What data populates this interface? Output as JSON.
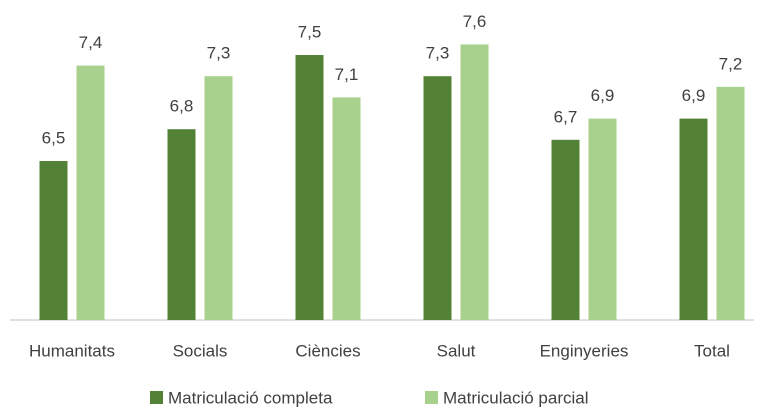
{
  "chart_data": {
    "type": "bar",
    "categories": [
      "Humanitats",
      "Socials",
      "Ciències",
      "Salut",
      "Enginyeries",
      "Total"
    ],
    "series": [
      {
        "name": "Matriculació completa",
        "color": "#538135",
        "values": [
          6.5,
          6.8,
          7.5,
          7.3,
          6.7,
          6.9
        ],
        "value_labels": [
          "6,5",
          "6,8",
          "7,5",
          "7,3",
          "6,7",
          "6,9"
        ]
      },
      {
        "name": "Matriculació parcial",
        "color": "#a9d18e",
        "values": [
          7.4,
          7.3,
          7.1,
          7.6,
          6.9,
          7.2
        ],
        "value_labels": [
          "7,4",
          "7,3",
          "7,1",
          "7,6",
          "6,9",
          "7,2"
        ]
      }
    ],
    "ylim": [
      5,
      8
    ],
    "legend": "bottom"
  }
}
